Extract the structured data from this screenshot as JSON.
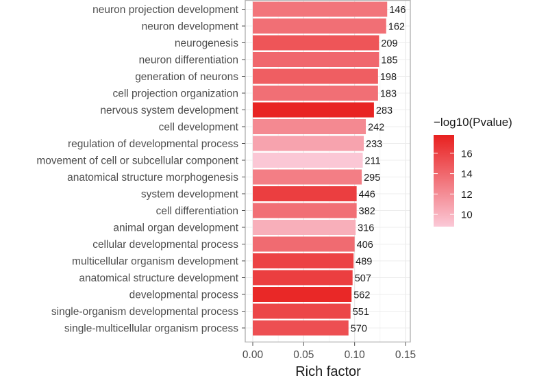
{
  "chart_data": {
    "type": "bar",
    "orientation": "horizontal",
    "title": "",
    "xlabel": "Rich factor",
    "ylabel": "",
    "xlim": [
      0,
      0.155
    ],
    "xticks": [
      "0.00",
      "0.05",
      "0.10",
      "0.15"
    ],
    "xtick_values": [
      0,
      0.05,
      0.1,
      0.15
    ],
    "grid": true,
    "categories": [
      "neuron projection development",
      "neuron development",
      "neurogenesis",
      "neuron differentiation",
      "generation of neurons",
      "cell projection organization",
      "nervous system development",
      "cell development",
      "regulation of developmental process",
      "movement of cell or subcellular component",
      "anatomical structure morphogenesis",
      "system development",
      "cell differentiation",
      "animal organ development",
      "cellular developmental process",
      "multicellular organism development",
      "anatomical structure development",
      "developmental process",
      "single-organism developmental process",
      "single-multicellular organism process"
    ],
    "values": [
      0.132,
      0.131,
      0.124,
      0.124,
      0.123,
      0.123,
      0.119,
      0.111,
      0.109,
      0.108,
      0.107,
      0.102,
      0.102,
      0.101,
      0.1,
      0.099,
      0.098,
      0.097,
      0.096,
      0.094
    ],
    "bar_labels": [
      "146",
      "162",
      "209",
      "185",
      "198",
      "183",
      "283",
      "242",
      "233",
      "211",
      "295",
      "446",
      "382",
      "316",
      "406",
      "489",
      "507",
      "562",
      "551",
      "570"
    ],
    "color_values": [
      13.3,
      13.6,
      15.0,
      14.0,
      14.5,
      13.6,
      17.6,
      12.2,
      10.8,
      8.9,
      12.8,
      16.2,
      13.6,
      10.2,
      13.8,
      16.0,
      16.2,
      17.4,
      15.8,
      15.3
    ],
    "color_scale": {
      "title": "−log10(Pvalue)",
      "ticks": [
        "10",
        "12",
        "14",
        "16"
      ],
      "tick_values": [
        10,
        12,
        14,
        16
      ],
      "min": 8.8,
      "max": 17.8,
      "low_color": "#fbc9d7",
      "high_color": "#e8201f"
    }
  }
}
